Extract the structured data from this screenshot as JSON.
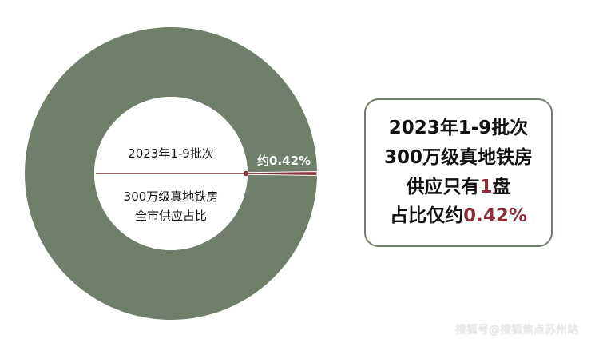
{
  "chart_data": {
    "type": "pie",
    "style": "donut",
    "slices": [
      {
        "label": "",
        "value": 99.58,
        "color": "#6f7f69"
      },
      {
        "label": "约0.42%",
        "value": 0.42,
        "color": "#8b2e3a"
      }
    ],
    "center_label_top": "2023年1-9批次",
    "center_label_bottom_line1": "300万级真地铁房",
    "center_label_bottom_line2": "全市供应占比",
    "legend": "none"
  },
  "summary": {
    "line1": "2023年1-9批次",
    "line2": "300万级真地铁房",
    "line3_prefix": "供应只有",
    "line3_highlight": "1",
    "line3_suffix": "盘",
    "line4_prefix": "占比仅约",
    "line4_highlight": "0.42%"
  },
  "colors": {
    "ring": "#6f7f69",
    "accent": "#8b2e3a",
    "text": "#111111"
  },
  "watermark": "搜狐号@搜狐焦点苏州站"
}
